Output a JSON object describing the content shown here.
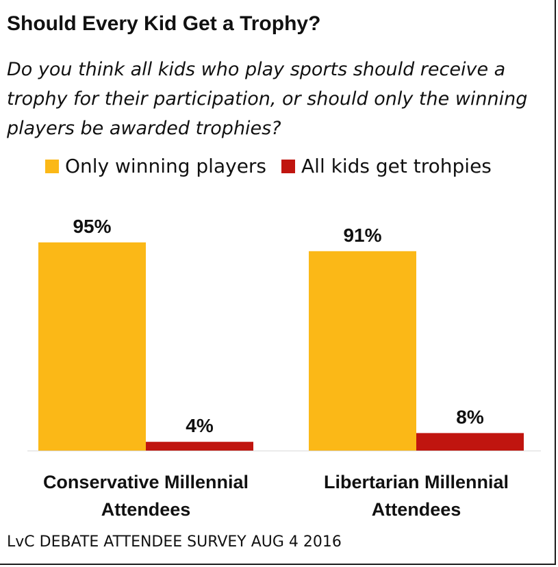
{
  "chart_data": {
    "type": "bar",
    "title": "Should Every Kid Get a Trophy?",
    "subtitle": "Do you think all kids who play sports should receive a trophy for their participation, or should only the winning players be awarded trophies?",
    "categories": [
      "Conservative Millennial Attendees",
      "Libertarian Millennial Attendees"
    ],
    "category_lines": [
      [
        "Conservative Millennial",
        "Attendees"
      ],
      [
        "Libertarian Millennial",
        "Attendees"
      ]
    ],
    "series": [
      {
        "name": "Only winning players",
        "values": [
          95,
          91
        ],
        "labels": [
          "95%",
          "91%"
        ],
        "color": "#FBB817"
      },
      {
        "name": "All kids get trohpies",
        "values": [
          4,
          8
        ],
        "labels": [
          "4%",
          "8%"
        ],
        "color": "#C0150F"
      }
    ],
    "ylim": [
      0,
      100
    ],
    "xlabel": "",
    "ylabel": "",
    "grid": false,
    "legend_position": "top"
  },
  "source": "LvC DEBATE ATTENDEE SURVEY AUG 4 2016"
}
